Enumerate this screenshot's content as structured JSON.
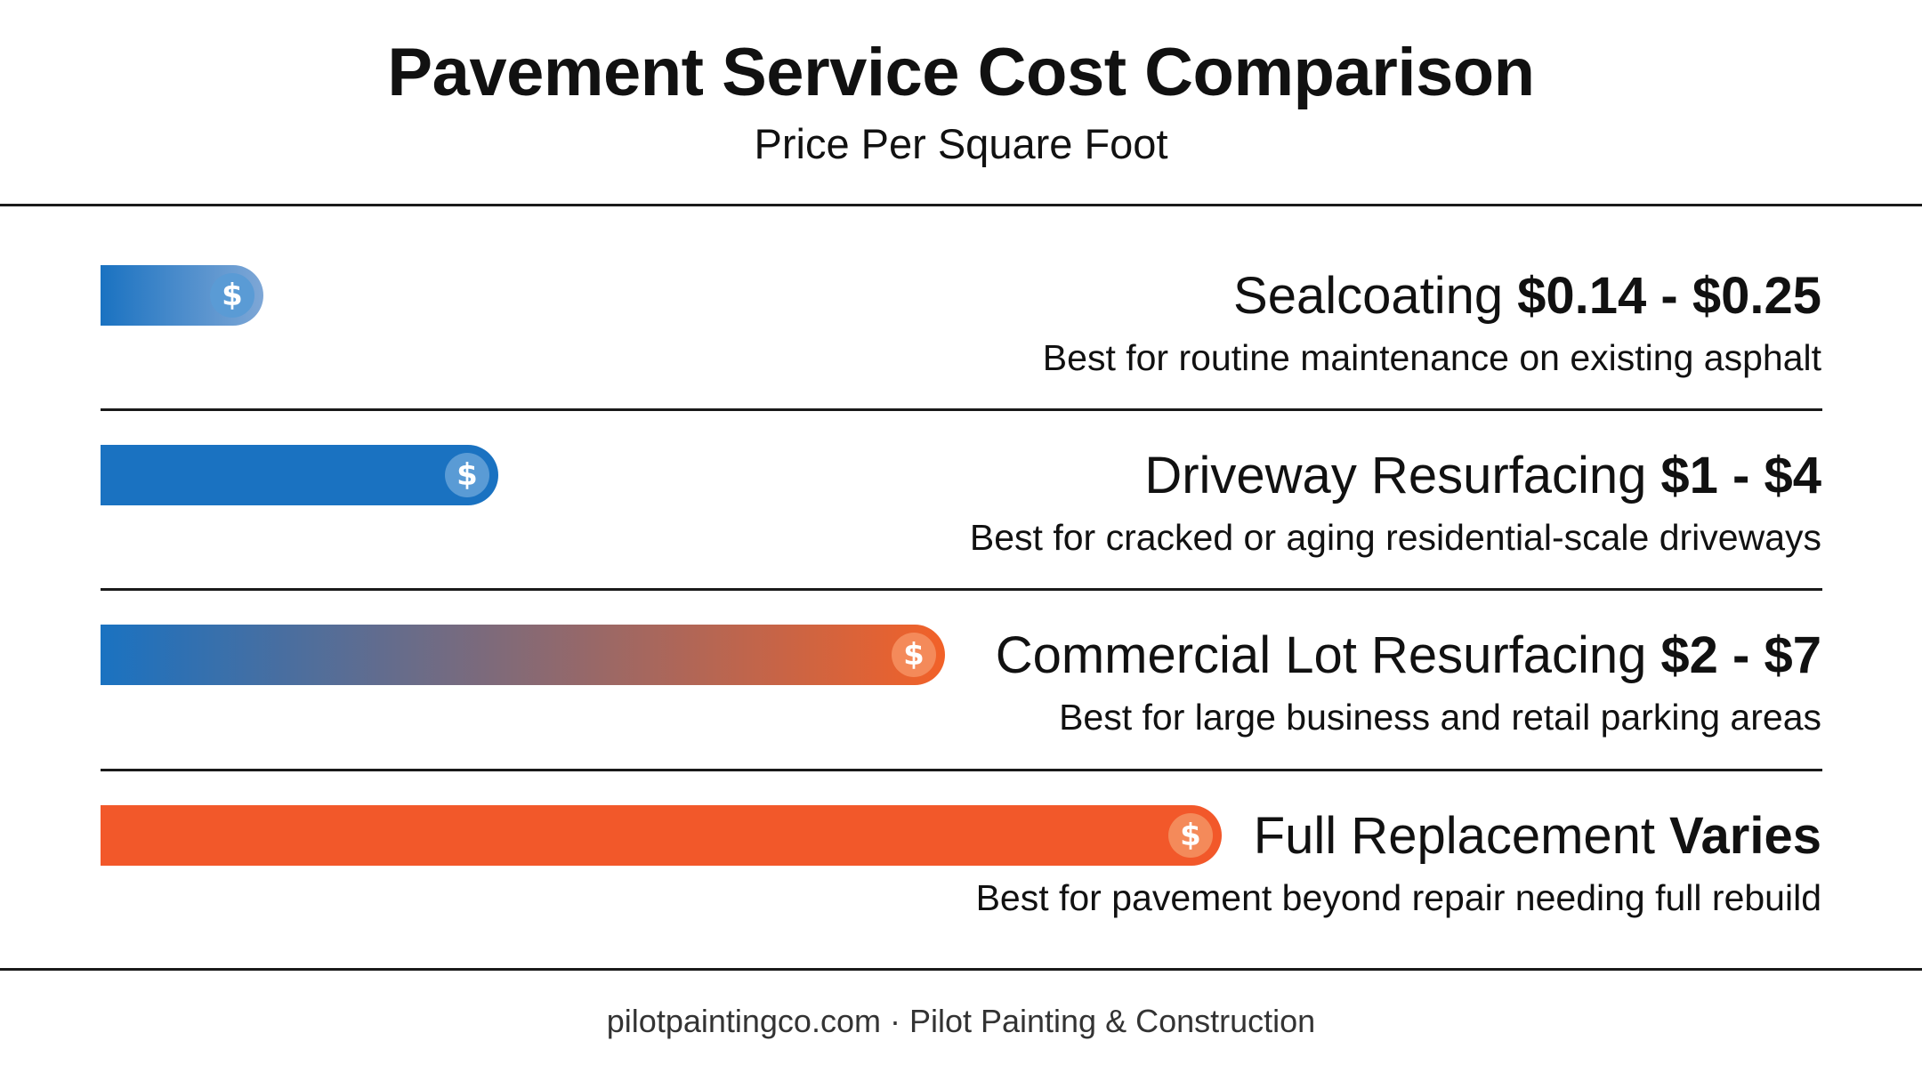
{
  "header": {
    "title": "Pavement Service Cost Comparison",
    "subtitle": "Price Per Square Foot"
  },
  "chart_data": {
    "type": "bar",
    "orientation": "horizontal",
    "title": "Pavement Service Cost Comparison",
    "subtitle": "Price Per Square Foot",
    "categories": [
      "Sealcoating",
      "Driveway Resurfacing",
      "Commercial Lot Resurfacing",
      "Full Replacement"
    ],
    "rows": [
      {
        "name": "Sealcoating",
        "price": "$0.14 - $0.25",
        "description": "Best for routine maintenance on existing asphalt",
        "bar_fraction": 0.145,
        "start_color": "#1a72c1",
        "end_color": "#7ea7d6",
        "coin": "blue"
      },
      {
        "name": "Driveway Resurfacing",
        "price": "$1 - $4",
        "description": "Best for cracked or aging residential-scale driveways",
        "bar_fraction": 0.355,
        "start_color": "#1a72c1",
        "end_color": "#1a72c1",
        "coin": "blue"
      },
      {
        "name": "Commercial Lot Resurfacing",
        "price": "$2 - $7",
        "description": "Best for large business and retail parking areas",
        "bar_fraction": 0.753,
        "start_color": "#1a72c1",
        "end_color": "#f26128",
        "coin": "orange"
      },
      {
        "name": "Full Replacement",
        "price": "Varies",
        "description": "Best for pavement beyond repair needing full rebuild",
        "bar_fraction": 1.0,
        "start_color": "#f2582a",
        "end_color": "#f2582a",
        "coin": "orange"
      }
    ],
    "coin_symbol": "$",
    "grid": false,
    "legend": "none"
  },
  "footer": {
    "text": "pilotpaintingco.com · Pilot Painting & Construction"
  }
}
